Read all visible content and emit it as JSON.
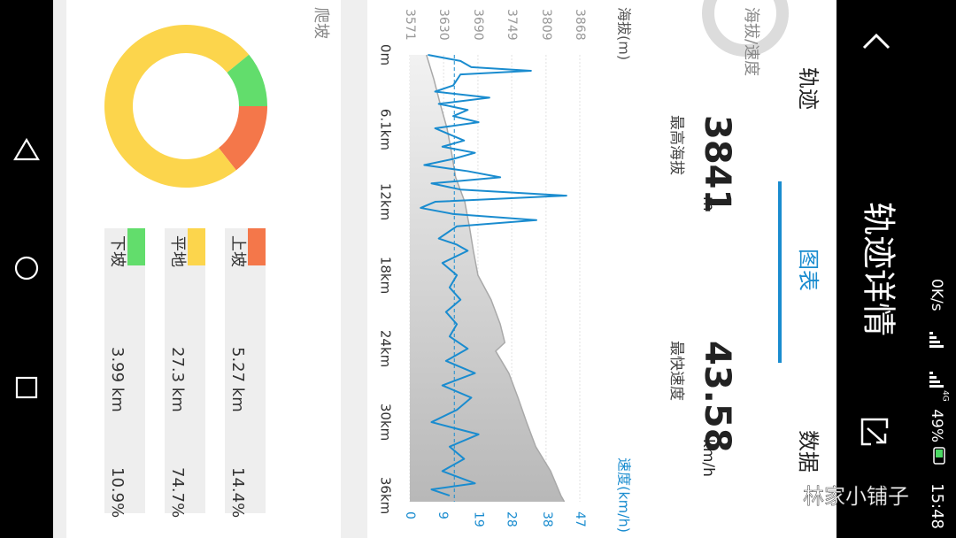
{
  "status_bar": {
    "speed": "0K/s",
    "network": "4G",
    "battery": "49%",
    "time": "15:48"
  },
  "header": {
    "title": "轨迹详情"
  },
  "tabs": [
    "轨迹",
    "图表",
    "数据"
  ],
  "active_tab": 1,
  "summary": {
    "title": "海拔/速度",
    "max_altitude": {
      "value": "3841",
      "unit": "m",
      "label": "最高海拔"
    },
    "max_speed": {
      "value": "43.58",
      "unit": "km/h",
      "label": "最快速度"
    }
  },
  "chart": {
    "type": "line",
    "y_label": "海拔(m)",
    "y2_label": "速度(km/h)",
    "xlim": [
      0,
      36.5
    ],
    "xticks": [
      {
        "value": 0,
        "label": "0m"
      },
      {
        "value": 6.1,
        "label": "6.1km"
      },
      {
        "value": 12,
        "label": "12km"
      },
      {
        "value": 18,
        "label": "18km"
      },
      {
        "value": 24,
        "label": "24km"
      },
      {
        "value": 30,
        "label": "30km"
      },
      {
        "value": 36,
        "label": "36km"
      }
    ],
    "ylim": [
      3571,
      3868
    ],
    "yticks": [
      3571,
      3630,
      3690,
      3749,
      3809,
      3868
    ],
    "y2lim": [
      0,
      47
    ],
    "y2ticks": [
      0,
      9,
      19,
      28,
      38,
      47
    ],
    "grid": true,
    "series": [
      {
        "color": "#a9a9a9",
        "fill": true,
        "x": [
          0,
          2,
          4,
          6,
          8,
          10,
          12,
          14,
          16,
          18,
          20,
          22,
          23.5,
          24.2,
          26,
          28,
          30,
          32,
          34,
          36,
          36.5
        ],
        "values": [
          3600,
          3613,
          3624,
          3636,
          3644,
          3651,
          3667,
          3675,
          3682,
          3690,
          3713,
          3729,
          3737,
          3721,
          3744,
          3760,
          3775,
          3791,
          3817,
          3835,
          3841
        ]
      },
      {
        "color": "#1a8ccf",
        "axis": "y2",
        "x": [
          0,
          0.5,
          1,
          1.3,
          1.6,
          2.5,
          3,
          3.5,
          4,
          4.5,
          5,
          5.5,
          6,
          7,
          7.5,
          8,
          8.5,
          9,
          9.5,
          10,
          10.5,
          11,
          11.5,
          12,
          12.5,
          13,
          13.5,
          14,
          15,
          15.5,
          16,
          17,
          18,
          19,
          20,
          21,
          22,
          23,
          24,
          25,
          26,
          27,
          28,
          29,
          30,
          31,
          32,
          33,
          34,
          35,
          35.5,
          36
        ],
        "values": [
          5,
          14,
          17,
          33.5,
          14,
          12,
          7,
          22,
          8,
          16,
          12,
          19,
          7,
          15,
          9,
          18,
          12,
          4,
          16,
          25,
          6,
          14,
          43.3,
          7,
          3,
          12,
          35,
          13,
          8,
          13,
          16,
          9,
          13,
          11,
          14,
          10,
          13,
          11,
          16,
          10,
          18,
          9,
          17,
          13,
          6,
          19,
          11,
          15,
          9,
          18,
          6,
          11
        ]
      }
    ],
    "average_speed": 12.3
  },
  "climb": {
    "title": "爬坡",
    "rows": [
      {
        "name": "上坡",
        "distance": "5.27 km",
        "percent": 14.4,
        "percent_label": "14.4%",
        "color": "#f4774a"
      },
      {
        "name": "平地",
        "distance": "27.3 km",
        "percent": 74.7,
        "percent_label": "74.7%",
        "color": "#fcd54c"
      },
      {
        "name": "下坡",
        "distance": "3.99 km",
        "percent": 10.9,
        "percent_label": "10.9%",
        "color": "#62dd6c"
      }
    ]
  },
  "watermark": "林家小铺子"
}
